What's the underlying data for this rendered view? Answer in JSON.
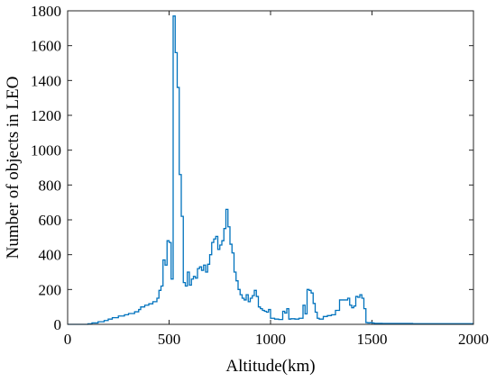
{
  "chart_data": {
    "type": "line",
    "style": "stairs",
    "xlabel": "Altitude(km)",
    "ylabel": "Number of objects in LEO",
    "xlim": [
      0,
      2000
    ],
    "ylim": [
      0,
      1800
    ],
    "x_ticks": [
      0,
      500,
      1000,
      1500,
      2000
    ],
    "y_ticks": [
      0,
      200,
      400,
      600,
      800,
      1000,
      1200,
      1400,
      1600,
      1800
    ],
    "grid": false,
    "line_color": "#0072BD",
    "series": [
      {
        "x": [
          0,
          100,
          120,
          150,
          180,
          200,
          220,
          250,
          280,
          300,
          330,
          350,
          360,
          380,
          400,
          420,
          440,
          450,
          460,
          470,
          480,
          490,
          500,
          510,
          520,
          530,
          540,
          550,
          560,
          570,
          580,
          590,
          600,
          610,
          620,
          630,
          640,
          650,
          660,
          670,
          680,
          690,
          700,
          710,
          720,
          730,
          740,
          750,
          760,
          770,
          780,
          790,
          800,
          810,
          820,
          830,
          840,
          850,
          860,
          870,
          880,
          890,
          900,
          910,
          920,
          930,
          940,
          950,
          960,
          970,
          980,
          990,
          1000,
          1020,
          1040,
          1060,
          1070,
          1080,
          1090,
          1100,
          1120,
          1140,
          1160,
          1170,
          1180,
          1190,
          1200,
          1210,
          1220,
          1230,
          1240,
          1250,
          1260,
          1280,
          1300,
          1320,
          1340,
          1360,
          1380,
          1390,
          1400,
          1410,
          1420,
          1430,
          1440,
          1450,
          1460,
          1470,
          1480,
          1490,
          1500,
          1510,
          1520,
          1550,
          1600,
          1700,
          1800,
          1900,
          2000
        ],
        "y": [
          0,
          3,
          8,
          15,
          22,
          30,
          38,
          48,
          55,
          62,
          72,
          85,
          100,
          110,
          118,
          130,
          150,
          195,
          220,
          370,
          340,
          480,
          470,
          260,
          1770,
          1560,
          1360,
          860,
          620,
          240,
          220,
          300,
          225,
          260,
          275,
          265,
          320,
          330,
          310,
          340,
          300,
          345,
          400,
          470,
          490,
          505,
          430,
          455,
          480,
          550,
          660,
          560,
          460,
          410,
          300,
          250,
          200,
          170,
          150,
          140,
          170,
          130,
          150,
          165,
          195,
          160,
          100,
          90,
          80,
          75,
          70,
          85,
          35,
          30,
          28,
          75,
          65,
          90,
          30,
          32,
          30,
          35,
          110,
          60,
          200,
          195,
          180,
          120,
          70,
          35,
          30,
          30,
          45,
          50,
          55,
          80,
          140,
          140,
          150,
          110,
          95,
          105,
          160,
          155,
          170,
          150,
          90,
          10,
          8,
          10,
          8,
          6,
          6,
          5,
          5,
          4,
          4,
          4,
          4
        ]
      }
    ]
  }
}
